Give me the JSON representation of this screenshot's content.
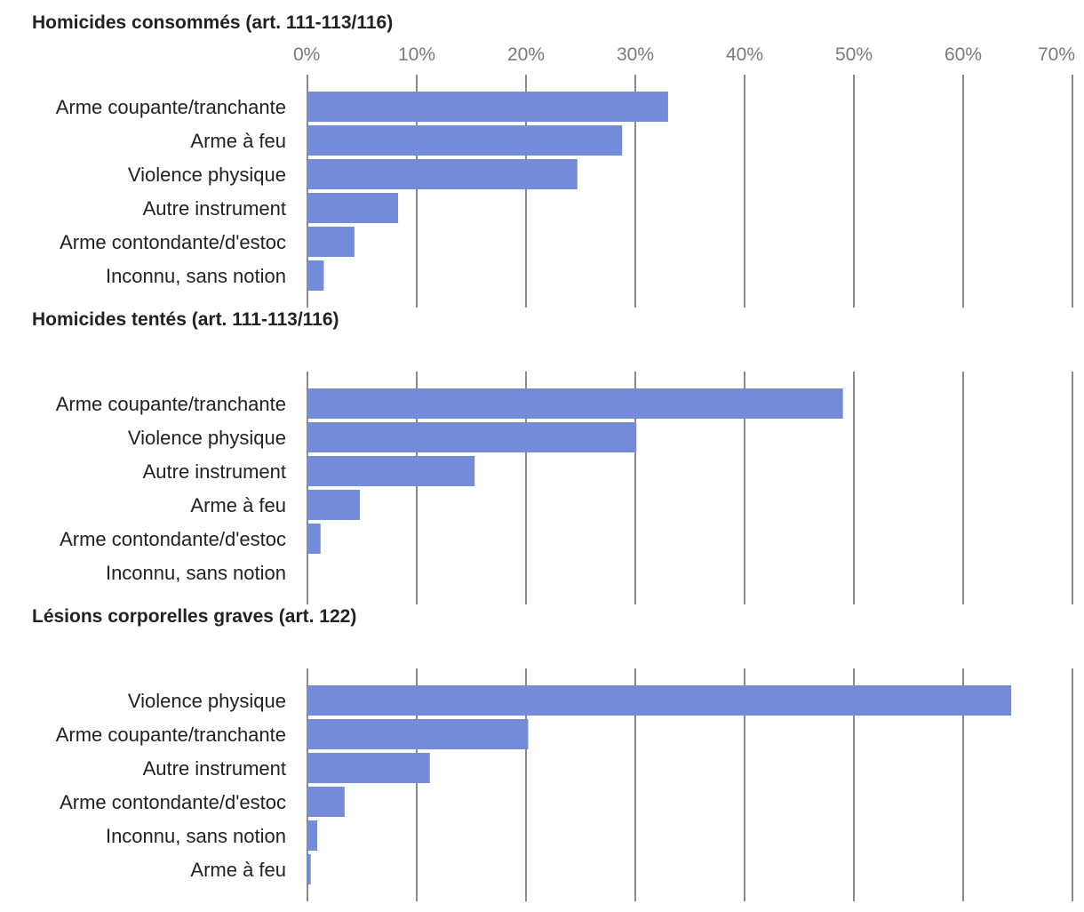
{
  "chart_data": {
    "type": "bar",
    "orientation": "horizontal",
    "bar_color": "#738cd9",
    "grid_color": "#8a8a8a",
    "xlim": [
      0,
      70
    ],
    "ticks": [
      {
        "value": 0,
        "label": "0%"
      },
      {
        "value": 10,
        "label": "10%"
      },
      {
        "value": 20,
        "label": "20%"
      },
      {
        "value": 30,
        "label": "30%"
      },
      {
        "value": 40,
        "label": "40%"
      },
      {
        "value": 50,
        "label": "50%"
      },
      {
        "value": 60,
        "label": "60%"
      },
      {
        "value": 70,
        "label": "70%"
      }
    ],
    "grid": true,
    "panels": [
      {
        "title": "Homicides consommés (art. 111-113/116)",
        "categories": [
          "Arme coupante/tranchante",
          "Arme à feu",
          "Violence physique",
          "Autre instrument",
          "Arme contondante/d'estoc",
          "Inconnu, sans notion"
        ],
        "values": [
          33.0,
          28.8,
          24.7,
          8.3,
          4.3,
          1.5
        ]
      },
      {
        "title": "Homicides tentés (art. 111-113/116)",
        "categories": [
          "Arme coupante/tranchante",
          "Violence physique",
          "Autre instrument",
          "Arme à feu",
          "Arme contondante/d'estoc",
          "Inconnu, sans notion"
        ],
        "values": [
          49.0,
          30.1,
          15.3,
          4.8,
          1.2,
          0
        ]
      },
      {
        "title": "Lésions corporelles graves (art. 122)",
        "categories": [
          "Violence physique",
          "Arme coupante/tranchante",
          "Autre instrument",
          "Arme contondante/d'estoc",
          "Inconnu, sans notion",
          "Arme à feu"
        ],
        "values": [
          64.4,
          20.2,
          11.2,
          3.4,
          0.9,
          0.3
        ]
      }
    ]
  }
}
